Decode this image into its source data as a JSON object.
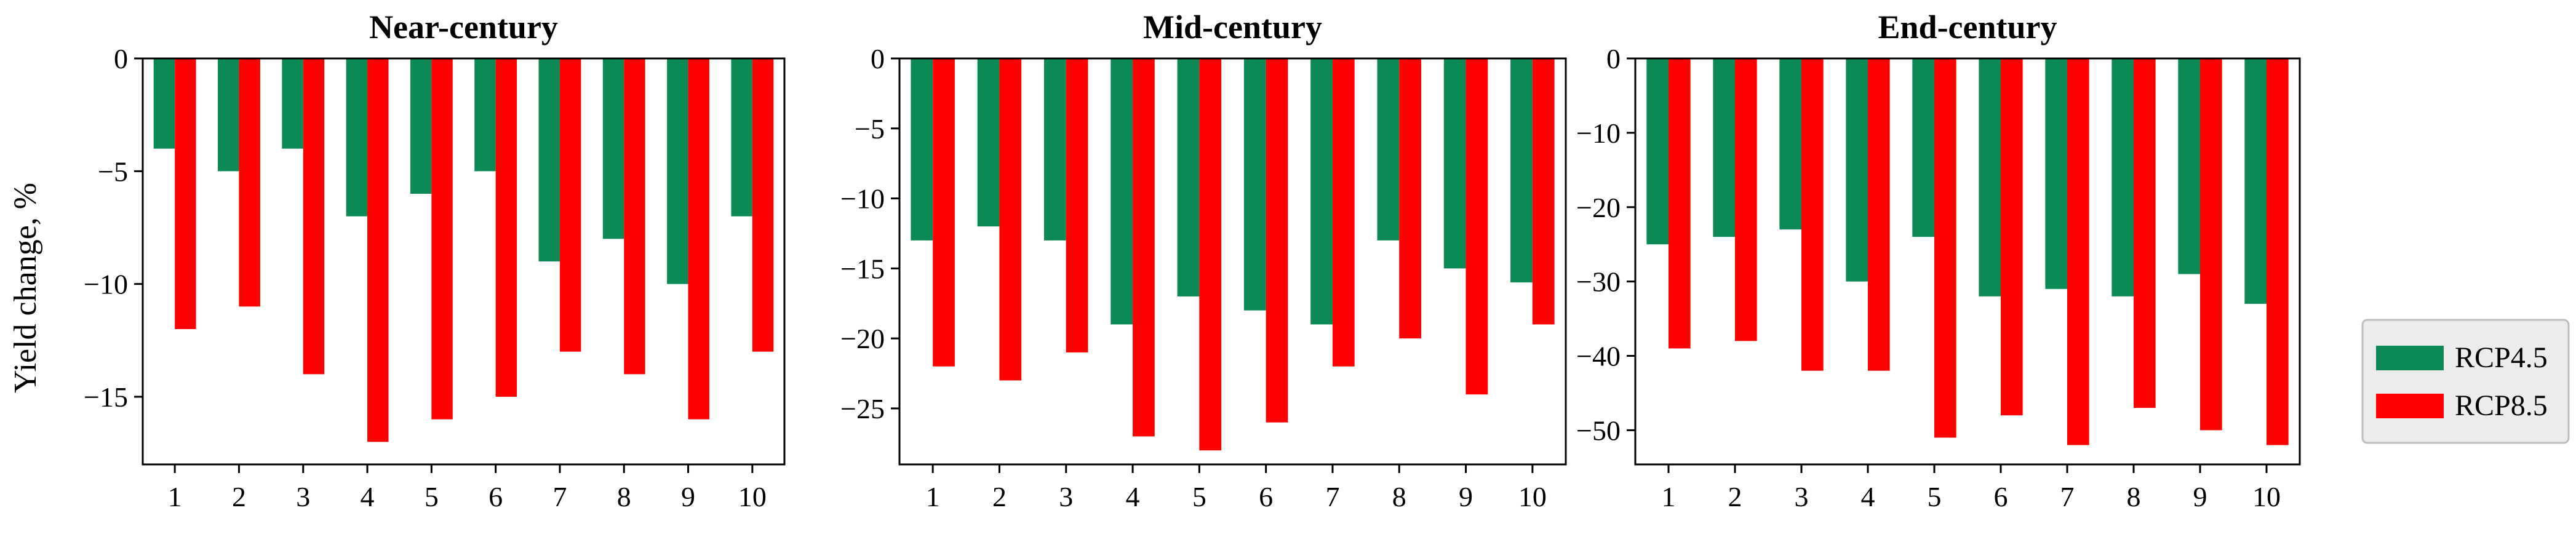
{
  "figure": {
    "ylabel": "Yield change, %",
    "legend": {
      "position": "right",
      "entries": [
        {
          "label": "RCP4.5",
          "color": "#0b8a55"
        },
        {
          "label": "RCP8.5",
          "color": "#ff0000"
        }
      ]
    }
  },
  "chart_data": [
    {
      "type": "bar",
      "title": "Near-century",
      "categories": [
        "1",
        "2",
        "3",
        "4",
        "5",
        "6",
        "7",
        "8",
        "9",
        "10"
      ],
      "ylabel": "Yield change, %",
      "ylim": [
        -18,
        0
      ],
      "yticks": [
        0,
        -5,
        -10,
        -15
      ],
      "grid": false,
      "series": [
        {
          "name": "RCP4.5",
          "color": "#0b8a55",
          "values": [
            -4,
            -5,
            -4,
            -7,
            -6,
            -5,
            -9,
            -8,
            -10,
            -7
          ]
        },
        {
          "name": "RCP8.5",
          "color": "#ff0000",
          "values": [
            -12,
            -11,
            -14,
            -17,
            -16,
            -15,
            -13,
            -14,
            -16,
            -13
          ]
        }
      ]
    },
    {
      "type": "bar",
      "title": "Mid-century",
      "categories": [
        "1",
        "2",
        "3",
        "4",
        "5",
        "6",
        "7",
        "8",
        "9",
        "10"
      ],
      "ylim": [
        -29,
        0
      ],
      "yticks": [
        0,
        -5,
        -10,
        -15,
        -20,
        -25
      ],
      "grid": false,
      "series": [
        {
          "name": "RCP4.5",
          "color": "#0b8a55",
          "values": [
            -13,
            -12,
            -13,
            -19,
            -17,
            -18,
            -19,
            -13,
            -15,
            -16
          ]
        },
        {
          "name": "RCP8.5",
          "color": "#ff0000",
          "values": [
            -22,
            -23,
            -21,
            -27,
            -28,
            -26,
            -22,
            -20,
            -24,
            -19
          ]
        }
      ]
    },
    {
      "type": "bar",
      "title": "End-century",
      "categories": [
        "1",
        "2",
        "3",
        "4",
        "5",
        "6",
        "7",
        "8",
        "9",
        "10"
      ],
      "ylim": [
        -54.6,
        0
      ],
      "yticks": [
        0,
        -10,
        -20,
        -30,
        -40,
        -50
      ],
      "grid": false,
      "series": [
        {
          "name": "RCP4.5",
          "color": "#0b8a55",
          "values": [
            -25,
            -24,
            -23,
            -30,
            -24,
            -32,
            -31,
            -32,
            -29,
            -33
          ]
        },
        {
          "name": "RCP8.5",
          "color": "#ff0000",
          "values": [
            -39,
            -38,
            -42,
            -42,
            -51,
            -48,
            -52,
            -47,
            -50,
            -52
          ]
        }
      ]
    }
  ]
}
